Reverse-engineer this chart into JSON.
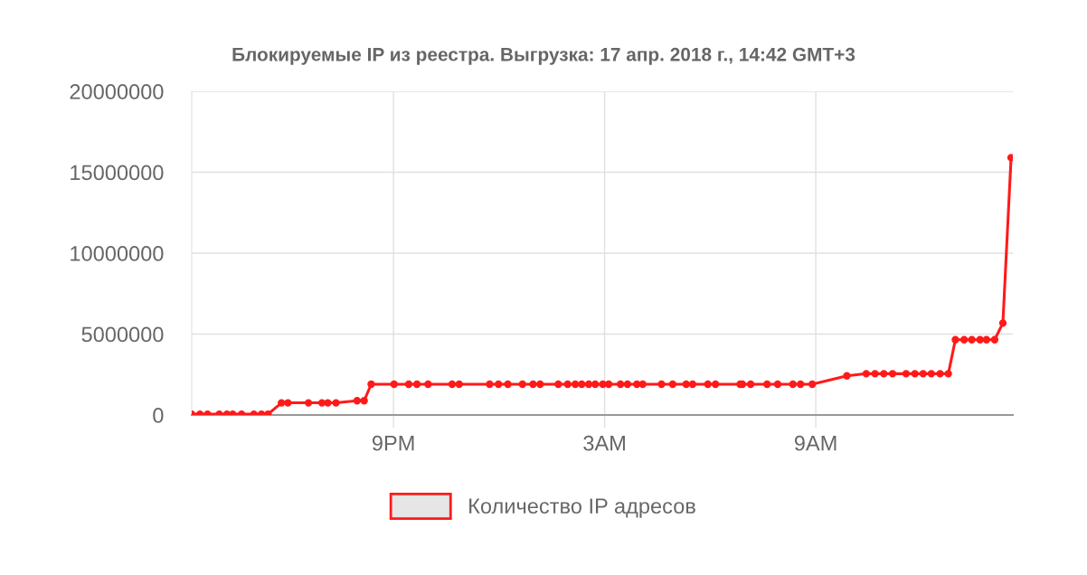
{
  "chart_data": {
    "type": "line",
    "title": "Блокируемые IP из реестра. Выгрузка: 17 апр. 2018 г., 14:42 GMT+3",
    "series": [
      {
        "name": "Количество IP адресов",
        "color": "#ff1a1a",
        "x": [
          "2018-04-16T15:16",
          "2018-04-16T15:30",
          "2018-04-16T15:43",
          "2018-04-16T16:03",
          "2018-04-16T16:16",
          "2018-04-16T16:26",
          "2018-04-16T16:41",
          "2018-04-16T17:02",
          "2018-04-16T17:15",
          "2018-04-16T17:26",
          "2018-04-16T17:49",
          "2018-04-16T18:00",
          "2018-04-16T18:35",
          "2018-04-16T18:58",
          "2018-04-16T19:08",
          "2018-04-16T19:22",
          "2018-04-16T19:58",
          "2018-04-16T20:10",
          "2018-04-16T20:22",
          "2018-04-16T21:01",
          "2018-04-16T21:26",
          "2018-04-16T21:40",
          "2018-04-16T21:59",
          "2018-04-16T22:40",
          "2018-04-16T22:52",
          "2018-04-16T23:44",
          "2018-04-16T23:59",
          "2018-04-17T00:15",
          "2018-04-17T00:40",
          "2018-04-17T00:58",
          "2018-04-17T01:10",
          "2018-04-17T01:41",
          "2018-04-17T01:57",
          "2018-04-17T02:10",
          "2018-04-17T02:21",
          "2018-04-17T02:33",
          "2018-04-17T02:44",
          "2018-04-17T02:57",
          "2018-04-17T03:07",
          "2018-04-17T03:27",
          "2018-04-17T03:39",
          "2018-04-17T03:55",
          "2018-04-17T04:05",
          "2018-04-17T04:37",
          "2018-04-17T04:56",
          "2018-04-17T05:19",
          "2018-04-17T05:30",
          "2018-04-17T05:56",
          "2018-04-17T06:09",
          "2018-04-17T06:51",
          "2018-04-17T06:55",
          "2018-04-17T07:09",
          "2018-04-17T07:37",
          "2018-04-17T07:55",
          "2018-04-17T08:21",
          "2018-04-17T08:34",
          "2018-04-17T08:54",
          "2018-04-17T09:53",
          "2018-04-17T10:26",
          "2018-04-17T10:41",
          "2018-04-17T10:56",
          "2018-04-17T11:11",
          "2018-04-17T11:34",
          "2018-04-17T11:49",
          "2018-04-17T12:03",
          "2018-04-17T12:17",
          "2018-04-17T12:32",
          "2018-04-17T12:46",
          "2018-04-17T12:58",
          "2018-04-17T13:13",
          "2018-04-17T13:26",
          "2018-04-17T13:40",
          "2018-04-17T13:51",
          "2018-04-17T14:05",
          "2018-04-17T14:19",
          "2018-04-17T14:33"
        ],
        "values": [
          50000,
          50000,
          50000,
          50000,
          50000,
          50000,
          50000,
          50000,
          50000,
          50000,
          750000,
          750000,
          750000,
          750000,
          750000,
          750000,
          880000,
          880000,
          1900000,
          1900000,
          1900000,
          1900000,
          1900000,
          1900000,
          1900000,
          1900000,
          1900000,
          1900000,
          1900000,
          1900000,
          1900000,
          1900000,
          1900000,
          1900000,
          1900000,
          1900000,
          1900000,
          1900000,
          1900000,
          1900000,
          1900000,
          1900000,
          1900000,
          1900000,
          1900000,
          1900000,
          1900000,
          1900000,
          1900000,
          1900000,
          1900000,
          1900000,
          1900000,
          1900000,
          1900000,
          1900000,
          1900000,
          2420000,
          2550000,
          2550000,
          2550000,
          2550000,
          2550000,
          2550000,
          2550000,
          2550000,
          2550000,
          2550000,
          4650000,
          4650000,
          4650000,
          4650000,
          4650000,
          4650000,
          5680000,
          15900000
        ]
      }
    ],
    "xlim": [
      "2018-04-16T15:16",
      "2018-04-17T14:36"
    ],
    "xticks": [
      {
        "value": "2018-04-16T21:00",
        "label": "9PM"
      },
      {
        "value": "2018-04-17T03:00",
        "label": "3AM"
      },
      {
        "value": "2018-04-17T09:00",
        "label": "9AM"
      }
    ],
    "ylim": [
      0,
      20000000
    ],
    "yticks": [
      0,
      5000000,
      10000000,
      15000000,
      20000000
    ],
    "grid": true,
    "legend": "bottom",
    "marker": "circle",
    "line_style": "solid"
  }
}
